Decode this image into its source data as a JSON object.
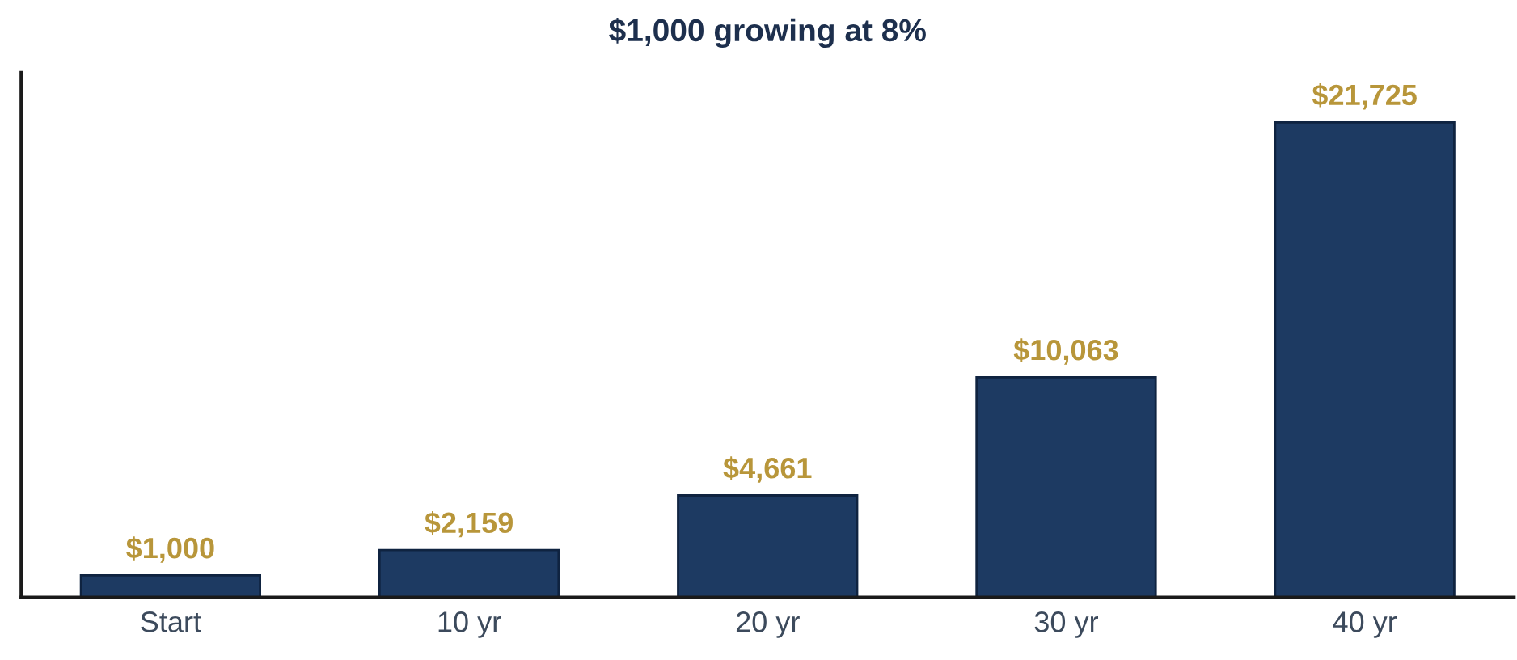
{
  "chart_data": {
    "type": "bar",
    "title": "$1,000 growing at 8%",
    "categories": [
      "Start",
      "10 yr",
      "20 yr",
      "30 yr",
      "40 yr"
    ],
    "values": [
      1000,
      2159,
      4661,
      10063,
      21725
    ],
    "value_labels": [
      "$1,000",
      "$2,159",
      "$4,661",
      "$10,063",
      "$21,725"
    ],
    "color": "#1d3a62",
    "ylim": [
      0,
      24000
    ],
    "tick_labels": "x",
    "grid": false,
    "legend": false
  }
}
